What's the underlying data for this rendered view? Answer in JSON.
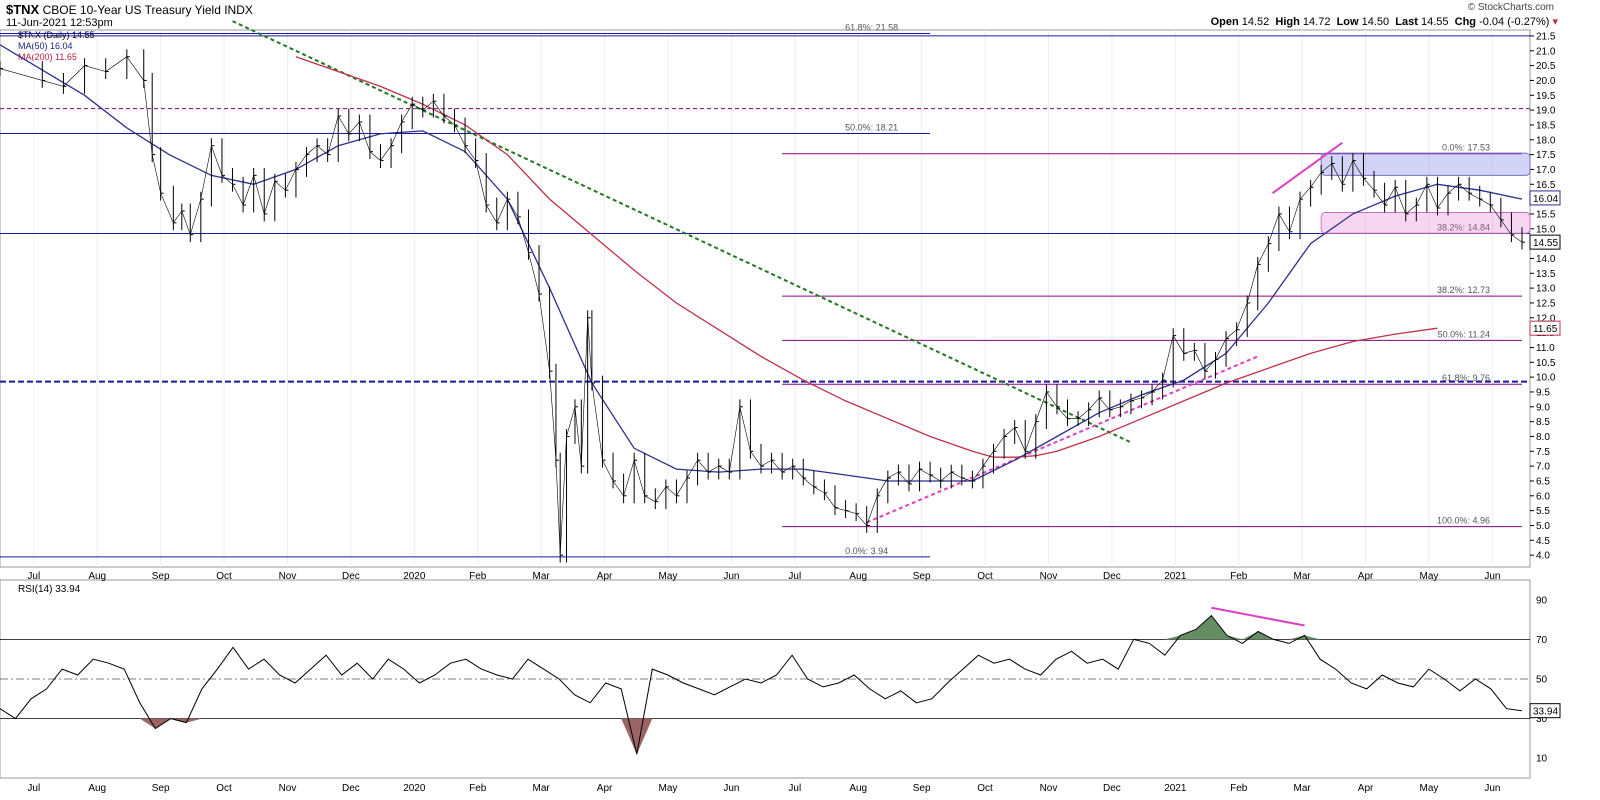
{
  "header": {
    "symbol": "$TNX",
    "name": "CBOE 10-Year US Treasury Yield INDX",
    "date": "11-Jun-2021 12:53pm",
    "brand": "© StockCharts.com",
    "open_label": "Open",
    "open": "14.52",
    "high_label": "High",
    "high": "14.72",
    "low_label": "Low",
    "low": "14.50",
    "last_label": "Last",
    "last": "14.55",
    "chg_label": "Chg",
    "chg": "-0.04 (-0.27%)"
  },
  "legend": {
    "price": "$TNX (Daily) 14.55",
    "ma50": "MA(50) 16.04",
    "ma200": "MA(200) 11.65"
  },
  "rsi_label": "RSI(14) 33.94",
  "colors": {
    "ma50": "#2b2f8f",
    "ma200": "#c0304a",
    "trend": "#1f7a1f",
    "pink": "#e040c0",
    "purple": "#8b008b",
    "blue": "#1a1aa0"
  },
  "chart_data": [
    {
      "type": "line",
      "title": "$TNX CBOE 10-Year US Treasury Yield INDX",
      "x_labels": [
        "Jul",
        "Aug",
        "Sep",
        "Oct",
        "Nov",
        "Dec",
        "2020",
        "Feb",
        "Mar",
        "Apr",
        "May",
        "Jun",
        "Jul",
        "Aug",
        "Sep",
        "Oct",
        "Nov",
        "Dec",
        "2021",
        "Feb",
        "Mar",
        "Apr",
        "May",
        "Jun"
      ],
      "ylim": [
        3.6,
        21.7
      ],
      "y_ticks": [
        4.0,
        4.5,
        5.0,
        5.5,
        6.0,
        6.5,
        7.0,
        7.5,
        8.0,
        8.5,
        9.0,
        9.5,
        10.0,
        10.5,
        11.0,
        11.5,
        12.0,
        12.5,
        13.0,
        13.5,
        14.0,
        14.5,
        15.0,
        15.5,
        16.0,
        16.5,
        17.0,
        17.5,
        18.0,
        18.5,
        19.0,
        19.5,
        20.0,
        20.5,
        21.0,
        21.5
      ],
      "series": [
        {
          "name": "$TNX (Daily)",
          "points": [
            [
              0,
              20.4
            ],
            [
              2,
              20.0
            ],
            [
              3,
              19.8
            ],
            [
              4,
              20.5
            ],
            [
              5,
              20.3
            ],
            [
              6,
              20.8
            ],
            [
              6.8,
              20.0
            ],
            [
              7.2,
              17.5
            ],
            [
              7.6,
              16.2
            ],
            [
              8.2,
              15.2
            ],
            [
              8.6,
              15.6
            ],
            [
              9,
              14.8
            ],
            [
              9.5,
              16.0
            ],
            [
              10,
              17.8
            ],
            [
              10.5,
              16.8
            ],
            [
              11,
              16.5
            ],
            [
              11.5,
              15.8
            ],
            [
              12,
              16.8
            ],
            [
              12.5,
              15.5
            ],
            [
              13,
              16.6
            ],
            [
              13.5,
              16.3
            ],
            [
              14,
              17.0
            ],
            [
              14.5,
              17.5
            ],
            [
              15,
              17.8
            ],
            [
              15.5,
              17.5
            ],
            [
              16,
              18.8
            ],
            [
              16.5,
              18.2
            ],
            [
              17,
              18.6
            ],
            [
              17.5,
              17.6
            ],
            [
              18,
              17.3
            ],
            [
              18.5,
              17.8
            ],
            [
              19,
              18.6
            ],
            [
              19.5,
              19.2
            ],
            [
              20,
              19.0
            ],
            [
              20.5,
              19.3
            ],
            [
              21,
              18.8
            ],
            [
              21.5,
              18.5
            ],
            [
              22,
              17.8
            ],
            [
              22.5,
              17.3
            ],
            [
              23,
              15.8
            ],
            [
              23.5,
              15.2
            ],
            [
              24,
              16.0
            ],
            [
              24.5,
              15.4
            ],
            [
              25,
              14.2
            ],
            [
              25.5,
              12.8
            ],
            [
              26,
              10.2
            ],
            [
              26.3,
              7.2
            ],
            [
              26.5,
              4.0
            ],
            [
              26.8,
              8.0
            ],
            [
              27.2,
              9.0
            ],
            [
              27.5,
              7.0
            ],
            [
              27.8,
              12.0
            ],
            [
              28,
              9.8
            ],
            [
              28.5,
              7.2
            ],
            [
              29,
              6.5
            ],
            [
              29.5,
              6.0
            ],
            [
              30,
              7.2
            ],
            [
              30.5,
              6.0
            ],
            [
              31,
              5.8
            ],
            [
              31.5,
              6.3
            ],
            [
              32,
              6.0
            ],
            [
              32.5,
              6.6
            ],
            [
              33,
              7.2
            ],
            [
              33.5,
              6.8
            ],
            [
              34,
              7.0
            ],
            [
              34.5,
              6.8
            ],
            [
              35,
              9.0
            ],
            [
              35.5,
              7.5
            ],
            [
              36,
              7.0
            ],
            [
              36.5,
              7.2
            ],
            [
              37,
              6.8
            ],
            [
              37.5,
              7.0
            ],
            [
              38,
              6.6
            ],
            [
              38.5,
              6.3
            ],
            [
              39,
              6.1
            ],
            [
              39.5,
              5.6
            ],
            [
              40,
              5.5
            ],
            [
              40.5,
              5.4
            ],
            [
              41,
              5.0
            ],
            [
              41.5,
              6.0
            ],
            [
              42,
              6.6
            ],
            [
              42.5,
              6.8
            ],
            [
              43,
              6.4
            ],
            [
              43.5,
              6.9
            ],
            [
              44,
              6.7
            ],
            [
              44.5,
              6.5
            ],
            [
              45,
              6.8
            ],
            [
              45.5,
              6.6
            ],
            [
              46,
              6.5
            ],
            [
              46.5,
              7.0
            ],
            [
              47,
              7.5
            ],
            [
              47.5,
              8.0
            ],
            [
              48,
              8.3
            ],
            [
              48.5,
              7.5
            ],
            [
              49,
              8.5
            ],
            [
              49.5,
              9.5
            ],
            [
              50,
              9.0
            ],
            [
              50.5,
              8.6
            ],
            [
              51,
              8.6
            ],
            [
              51.5,
              8.9
            ],
            [
              52,
              9.3
            ],
            [
              52.5,
              8.9
            ],
            [
              53,
              9.0
            ],
            [
              53.5,
              9.2
            ],
            [
              54,
              9.3
            ],
            [
              54.5,
              9.5
            ],
            [
              55,
              9.9
            ],
            [
              55.5,
              11.4
            ],
            [
              56,
              10.8
            ],
            [
              56.5,
              10.9
            ],
            [
              57,
              10.2
            ],
            [
              57.5,
              10.6
            ],
            [
              58,
              11.3
            ],
            [
              58.5,
              11.6
            ],
            [
              59,
              12.5
            ],
            [
              59.5,
              13.8
            ],
            [
              60,
              14.5
            ],
            [
              60.5,
              15.5
            ],
            [
              61,
              14.9
            ],
            [
              61.5,
              16.0
            ],
            [
              62,
              16.4
            ],
            [
              62.5,
              16.9
            ],
            [
              63,
              17.2
            ],
            [
              63.5,
              16.5
            ],
            [
              64,
              17.3
            ],
            [
              64.5,
              16.7
            ],
            [
              65,
              16.3
            ],
            [
              65.5,
              15.8
            ],
            [
              66,
              16.4
            ],
            [
              66.5,
              15.5
            ],
            [
              67,
              15.8
            ],
            [
              67.5,
              16.5
            ],
            [
              68,
              15.7
            ],
            [
              68.5,
              16.2
            ],
            [
              69,
              16.5
            ],
            [
              69.5,
              16.2
            ],
            [
              70,
              16.0
            ],
            [
              70.5,
              15.8
            ],
            [
              71,
              15.3
            ],
            [
              71.5,
              14.8
            ],
            [
              72,
              14.55
            ]
          ]
        },
        {
          "name": "MA(50)",
          "points": [
            [
              0,
              21.2
            ],
            [
              4,
              19.5
            ],
            [
              6,
              18.4
            ],
            [
              8,
              17.5
            ],
            [
              10,
              16.8
            ],
            [
              12,
              16.5
            ],
            [
              14,
              17.0
            ],
            [
              16,
              17.8
            ],
            [
              18,
              18.2
            ],
            [
              20,
              18.3
            ],
            [
              22,
              17.6
            ],
            [
              24,
              16.0
            ],
            [
              26,
              13.0
            ],
            [
              28,
              9.8
            ],
            [
              30,
              7.6
            ],
            [
              32,
              6.9
            ],
            [
              34,
              6.8
            ],
            [
              36,
              6.9
            ],
            [
              38,
              6.9
            ],
            [
              40,
              6.7
            ],
            [
              42,
              6.5
            ],
            [
              44,
              6.5
            ],
            [
              46,
              6.5
            ],
            [
              48,
              7.2
            ],
            [
              50,
              8.0
            ],
            [
              52,
              8.8
            ],
            [
              54,
              9.4
            ],
            [
              56,
              9.9
            ],
            [
              58,
              10.8
            ],
            [
              60,
              12.5
            ],
            [
              62,
              14.5
            ],
            [
              64,
              15.5
            ],
            [
              66,
              16.1
            ],
            [
              68,
              16.5
            ],
            [
              70,
              16.3
            ],
            [
              72,
              16.0
            ]
          ]
        },
        {
          "name": "MA(200)",
          "points": [
            [
              14,
              20.8
            ],
            [
              18,
              19.8
            ],
            [
              20,
              19.2
            ],
            [
              22,
              18.5
            ],
            [
              24,
              17.5
            ],
            [
              26,
              16.0
            ],
            [
              28,
              14.8
            ],
            [
              30,
              13.6
            ],
            [
              32,
              12.5
            ],
            [
              34,
              11.6
            ],
            [
              36,
              10.7
            ],
            [
              38,
              9.9
            ],
            [
              40,
              9.2
            ],
            [
              42,
              8.6
            ],
            [
              44,
              8.0
            ],
            [
              46,
              7.5
            ],
            [
              47,
              7.3
            ],
            [
              48,
              7.3
            ],
            [
              49,
              7.35
            ],
            [
              50,
              7.5
            ],
            [
              52,
              8.0
            ],
            [
              54,
              8.6
            ],
            [
              56,
              9.2
            ],
            [
              58,
              9.8
            ],
            [
              60,
              10.3
            ],
            [
              62,
              10.8
            ],
            [
              64,
              11.2
            ],
            [
              66,
              11.45
            ],
            [
              68,
              11.65
            ]
          ]
        }
      ],
      "fib_levels": [
        {
          "label": "61.8%: 21.58",
          "value": 21.58
        },
        {
          "label": "50.0%: 18.21",
          "value": 18.21
        },
        {
          "label": "38.2%: 14.84",
          "value": 14.84
        },
        {
          "label": "0.0%: 3.94",
          "value": 3.94
        },
        {
          "label": "0.0%: 17.53",
          "value": 17.53
        },
        {
          "label": "38.2%: 12.73",
          "value": 12.73
        },
        {
          "label": "50.0%: 11.24",
          "value": 11.24
        },
        {
          "label": "61.8%: 9.76",
          "value": 9.76
        },
        {
          "label": "100.0%: 4.96",
          "value": 4.96
        }
      ],
      "price_flags": [
        {
          "label": "16.04",
          "value": 16.04
        },
        {
          "label": "14.55",
          "value": 14.55
        },
        {
          "label": "11.65",
          "value": 11.65
        }
      ]
    },
    {
      "type": "line",
      "title": "RSI(14)",
      "ylim": [
        0,
        100
      ],
      "y_ticks": [
        10,
        30,
        50,
        70,
        90
      ],
      "series": [
        {
          "name": "RSI(14)",
          "values": [
            35,
            30,
            40,
            45,
            55,
            52,
            60,
            58,
            55,
            38,
            25,
            30,
            28,
            45,
            55,
            66,
            55,
            60,
            52,
            48,
            55,
            62,
            52,
            58,
            50,
            60,
            55,
            48,
            52,
            58,
            60,
            55,
            52,
            50,
            60,
            55,
            50,
            42,
            38,
            48,
            45,
            12,
            55,
            52,
            48,
            45,
            42,
            46,
            50,
            48,
            52,
            62,
            50,
            46,
            48,
            52,
            45,
            40,
            44,
            38,
            40,
            48,
            55,
            62,
            58,
            60,
            55,
            52,
            60,
            64,
            58,
            60,
            55,
            70,
            68,
            62,
            72,
            75,
            82,
            72,
            68,
            74,
            70,
            68,
            72,
            60,
            55,
            48,
            45,
            52,
            48,
            46,
            55,
            50,
            44,
            50,
            45,
            35,
            34
          ]
        }
      ]
    }
  ]
}
